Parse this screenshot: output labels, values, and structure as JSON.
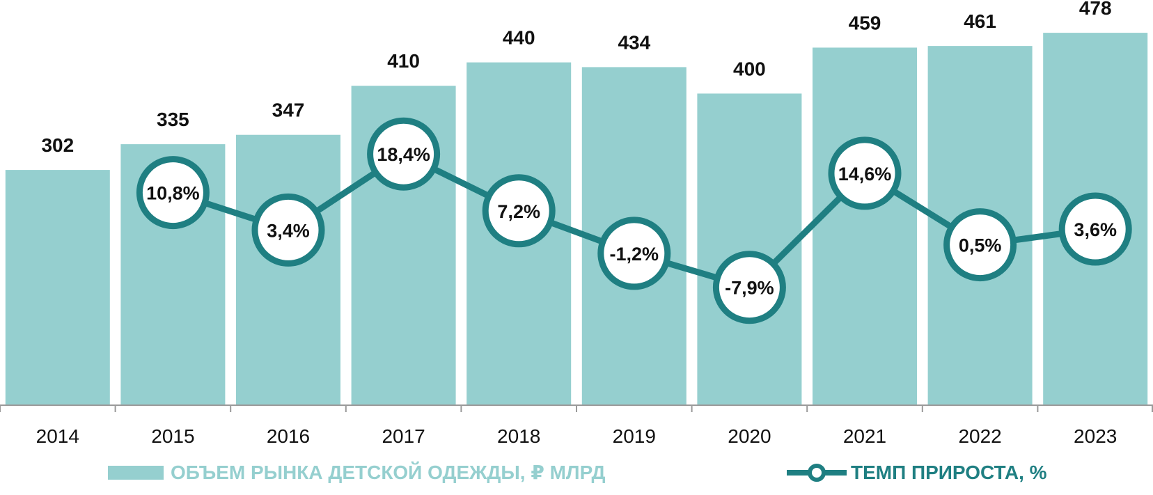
{
  "chart_data": {
    "type": "bar",
    "title": "",
    "xlabel": "",
    "ylabel": "",
    "categories": [
      "2014",
      "2015",
      "2016",
      "2017",
      "2018",
      "2019",
      "2020",
      "2021",
      "2022",
      "2023"
    ],
    "series": [
      {
        "name": "ОБЪЕМ РЫНКА ДЕТСКОЙ ОДЕЖДЫ, ₽ МЛРД",
        "type": "bar",
        "color": "#95cfcf",
        "values": [
          302,
          335,
          347,
          410,
          440,
          434,
          400,
          459,
          461,
          478
        ],
        "labels": [
          "302",
          "335",
          "347",
          "410",
          "440",
          "434",
          "400",
          "459",
          "461",
          "478"
        ]
      },
      {
        "name": "ТЕМП ПРИРОСТА, %",
        "type": "line",
        "color": "#1f7f82",
        "values": [
          null,
          10.8,
          3.4,
          18.4,
          7.2,
          -1.2,
          -7.9,
          14.6,
          0.5,
          3.6
        ],
        "labels": [
          "",
          "10,8%",
          "3,4%",
          "18,4%",
          "7,2%",
          "-1,2%",
          "-7,9%",
          "14,6%",
          "0,5%",
          "3,6%"
        ]
      }
    ],
    "ylim": [
      0,
      478
    ],
    "y2lim": [
      -15,
      28
    ],
    "grid": false,
    "legend": "bottom"
  }
}
